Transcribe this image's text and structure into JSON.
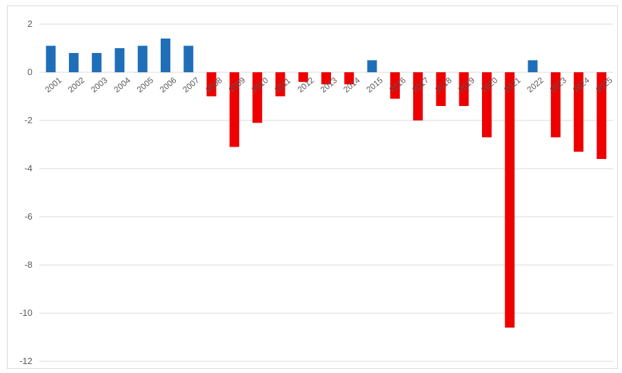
{
  "chart_data": {
    "type": "bar",
    "title": "",
    "xlabel": "",
    "ylabel": "",
    "ylim": [
      -12,
      2
    ],
    "yticks": [
      2,
      0,
      -2,
      -4,
      -6,
      -8,
      -10,
      -12
    ],
    "grid": true,
    "legend": "none",
    "categories": [
      "2001",
      "2002",
      "2003",
      "2004",
      "2005",
      "2006",
      "2007",
      "2008",
      "2009",
      "2010",
      "2011",
      "2012",
      "2013",
      "2014",
      "2015",
      "2016",
      "2017",
      "2018",
      "2019",
      "2020",
      "2021",
      "2022",
      "2023",
      "2024",
      "2025"
    ],
    "values": [
      1.1,
      0.8,
      0.8,
      1.0,
      1.1,
      1.4,
      1.1,
      -1.0,
      -3.1,
      -2.1,
      -1.0,
      -0.4,
      -0.5,
      -0.5,
      0.5,
      -1.1,
      -2.0,
      -1.4,
      -1.4,
      -2.7,
      -10.6,
      0.5,
      -2.7,
      -3.3,
      -3.6
    ],
    "colors": {
      "positive": "#1f6fb8",
      "negative": "#ee0000"
    }
  }
}
